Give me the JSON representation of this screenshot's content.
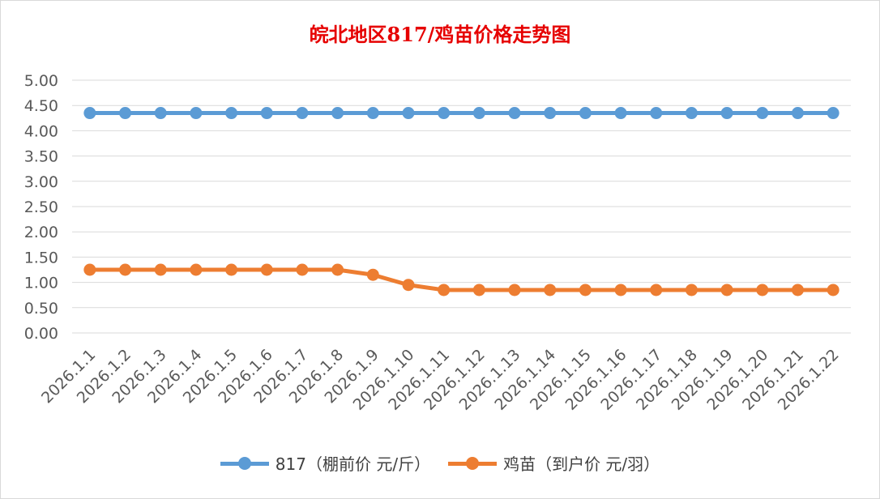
{
  "chart_data": {
    "type": "line",
    "title": "皖北地区817/鸡苗价格走势图",
    "categories": [
      "2026.1.1",
      "2026.1.2",
      "2026.1.3",
      "2026.1.4",
      "2026.1.5",
      "2026.1.6",
      "2026.1.7",
      "2026.1.8",
      "2026.1.9",
      "2026.1.10",
      "2026.1.11",
      "2026.1.12",
      "2026.1.13",
      "2026.1.14",
      "2026.1.15",
      "2026.1.16",
      "2026.1.17",
      "2026.1.18",
      "2026.1.19",
      "2026.1.20",
      "2026.1.21",
      "2026.1.22"
    ],
    "yticks": [
      "0.00",
      "0.50",
      "1.00",
      "1.50",
      "2.00",
      "2.50",
      "3.00",
      "3.50",
      "4.00",
      "4.50",
      "5.00"
    ],
    "ylim": [
      0,
      5
    ],
    "grid": true,
    "legend_position": "bottom",
    "series": [
      {
        "name": "817（棚前价 元/斤）",
        "color": "#5b9bd5",
        "values": [
          4.35,
          4.35,
          4.35,
          4.35,
          4.35,
          4.35,
          4.35,
          4.35,
          4.35,
          4.35,
          4.35,
          4.35,
          4.35,
          4.35,
          4.35,
          4.35,
          4.35,
          4.35,
          4.35,
          4.35,
          4.35,
          4.35
        ]
      },
      {
        "name": "鸡苗（到户价 元/羽）",
        "color": "#ed7d31",
        "values": [
          1.25,
          1.25,
          1.25,
          1.25,
          1.25,
          1.25,
          1.25,
          1.25,
          1.15,
          0.95,
          0.85,
          0.85,
          0.85,
          0.85,
          0.85,
          0.85,
          0.85,
          0.85,
          0.85,
          0.85,
          0.85,
          0.85
        ]
      }
    ]
  }
}
